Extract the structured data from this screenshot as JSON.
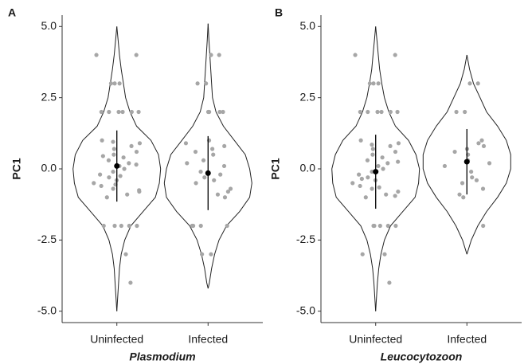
{
  "chart_data": [
    {
      "type": "violin",
      "panel_label": "A",
      "ylabel": "PC1",
      "xlabel": "Plasmodium",
      "categories": [
        "Uninfected",
        "Infected"
      ],
      "ylim": [
        -5.4,
        5.4
      ],
      "yticks": [
        {
          "value": 5,
          "label": "5.0"
        },
        {
          "value": 2.5,
          "label": "2.5"
        },
        {
          "value": 0,
          "label": "0.0"
        },
        {
          "value": -2.5,
          "label": "-2.5"
        },
        {
          "value": -5,
          "label": "-5.0"
        }
      ],
      "point_color": "#a6a6a6",
      "groups": [
        {
          "violin_y": [
            -5,
            -4.5,
            -4,
            -3.5,
            -3,
            -2.5,
            -2,
            -1.5,
            -1,
            -0.5,
            0,
            0.5,
            1,
            1.5,
            2,
            2.5,
            3,
            3.5,
            4,
            4.5,
            5
          ],
          "violin_width": [
            0,
            0.02,
            0.04,
            0.06,
            0.1,
            0.18,
            0.32,
            0.6,
            0.88,
            0.97,
            1.0,
            0.95,
            0.78,
            0.45,
            0.3,
            0.2,
            0.15,
            0.1,
            0.06,
            0.03,
            0
          ],
          "points": [
            4,
            4,
            3,
            3,
            3,
            2,
            2,
            2,
            2,
            2,
            2,
            1,
            0.9,
            0.8,
            0.7,
            0.6,
            0.5,
            0.4,
            0.3,
            0.2,
            0.1,
            0,
            -0.1,
            -0.2,
            -0.3,
            -0.4,
            -0.5,
            -0.6,
            -0.7,
            -0.8,
            -0.9,
            -1,
            0.95,
            0.45,
            -0.25,
            -0.75,
            0.15,
            -0.55,
            -2,
            -2,
            -2,
            -2,
            -2,
            -3,
            -4
          ],
          "mean": 0.1,
          "sd": 1.25
        },
        {
          "violin_y": [
            -4.2,
            -4,
            -3.5,
            -3,
            -2.5,
            -2,
            -1.5,
            -1,
            -0.5,
            0,
            0.5,
            1,
            1.5,
            2,
            2.5,
            3,
            3.5,
            4,
            4.5,
            5.1
          ],
          "violin_width": [
            0,
            0.03,
            0.08,
            0.15,
            0.25,
            0.42,
            0.72,
            0.95,
            1.0,
            0.95,
            0.85,
            0.6,
            0.35,
            0.18,
            0.1,
            0.08,
            0.06,
            0.04,
            0.02,
            0
          ],
          "points": [
            4,
            4,
            3,
            3,
            2,
            2,
            2,
            2,
            1,
            0.9,
            0.7,
            0.5,
            0.3,
            0.1,
            -0.1,
            -0.3,
            -0.5,
            -0.7,
            -0.9,
            -1,
            0.8,
            0.2,
            -0.4,
            -0.8,
            0.6,
            -0.2,
            -2,
            -2,
            -2,
            -2,
            -3,
            -3
          ],
          "mean": -0.15,
          "sd": 1.3
        }
      ]
    },
    {
      "type": "violin",
      "panel_label": "B",
      "ylabel": "PC1",
      "xlabel": "Leucocytozoon",
      "categories": [
        "Uninfected",
        "Infected"
      ],
      "ylim": [
        -5.4,
        5.4
      ],
      "yticks": [
        {
          "value": 5,
          "label": "5.0"
        },
        {
          "value": 2.5,
          "label": "2.5"
        },
        {
          "value": 0,
          "label": "0.0"
        },
        {
          "value": -2.5,
          "label": "-2.5"
        },
        {
          "value": -5,
          "label": "-5.0"
        }
      ],
      "point_color": "#a6a6a6",
      "groups": [
        {
          "violin_y": [
            -5,
            -4.5,
            -4,
            -3.5,
            -3,
            -2.5,
            -2,
            -1.5,
            -1,
            -0.5,
            0,
            0.5,
            1,
            1.5,
            2,
            2.5,
            3,
            3.5,
            4,
            4.5,
            5
          ],
          "violin_width": [
            0,
            0.02,
            0.04,
            0.07,
            0.12,
            0.2,
            0.34,
            0.62,
            0.9,
            0.98,
            1.0,
            0.92,
            0.75,
            0.45,
            0.3,
            0.2,
            0.14,
            0.09,
            0.06,
            0.03,
            0
          ],
          "points": [
            4,
            4,
            3,
            3,
            3,
            2,
            2,
            2,
            2,
            2,
            2,
            1,
            0.9,
            0.8,
            0.7,
            0.6,
            0.5,
            0.4,
            0.3,
            0.2,
            0.1,
            0,
            -0.1,
            -0.2,
            -0.3,
            -0.4,
            -0.5,
            -0.6,
            -0.7,
            -0.8,
            -0.9,
            -1,
            0.85,
            -0.35,
            -0.65,
            0.25,
            -0.95,
            -2,
            -2,
            -2,
            -2,
            -2,
            -3,
            -3,
            -4
          ],
          "mean": -0.1,
          "sd": 1.3
        },
        {
          "violin_y": [
            -3,
            -2.5,
            -2,
            -1.5,
            -1,
            -0.5,
            0,
            0.5,
            1,
            1.5,
            2,
            2.5,
            3,
            3.5,
            4
          ],
          "violin_width": [
            0,
            0.1,
            0.25,
            0.45,
            0.7,
            0.9,
            1.0,
            1.0,
            0.9,
            0.7,
            0.45,
            0.3,
            0.15,
            0.06,
            0
          ],
          "points": [
            3,
            3,
            2,
            2,
            1,
            0.9,
            0.7,
            0.5,
            0.3,
            0.1,
            -0.1,
            -0.3,
            -0.5,
            -0.7,
            -0.9,
            -1,
            0.6,
            0.2,
            -0.4,
            0.8,
            -2
          ],
          "mean": 0.25,
          "sd": 1.15
        }
      ]
    }
  ]
}
